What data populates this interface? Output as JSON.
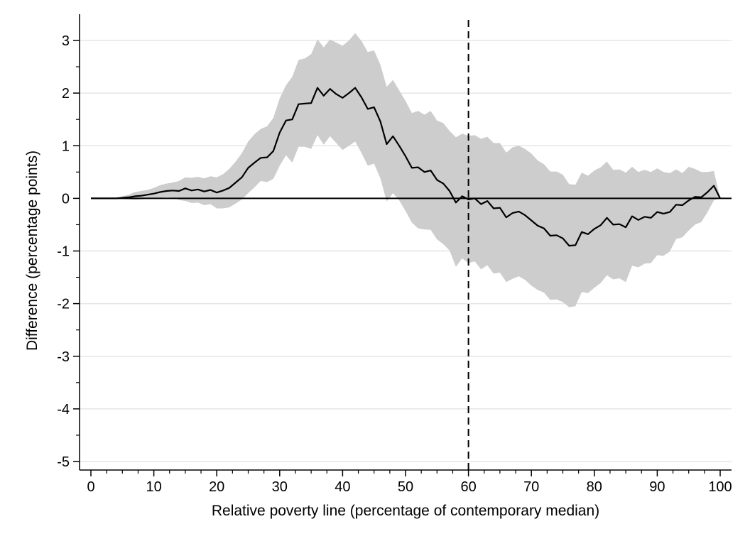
{
  "chart_data": {
    "type": "line",
    "title": "",
    "xlabel": "Relative poverty line (percentage of contemporary median)",
    "ylabel": "Difference (percentage points)",
    "xlim": [
      0,
      100
    ],
    "ylim": [
      -5,
      3
    ],
    "x_ticks": [
      0,
      10,
      20,
      30,
      40,
      50,
      60,
      70,
      80,
      90,
      100
    ],
    "y_ticks": [
      3,
      2,
      1,
      0,
      -1,
      -2,
      -3,
      -4,
      -5
    ],
    "x_minor_step": 2.5,
    "y_minor_step": 0.5,
    "grid": "horizontal",
    "reference_lines": [
      {
        "axis": "y",
        "value": 0,
        "style": "solid"
      },
      {
        "axis": "x",
        "value": 60,
        "style": "dashed"
      }
    ],
    "colors": {
      "line": "#000000",
      "band": "#cdcdcd",
      "grid": "#e6e6e6"
    },
    "x": [
      0,
      1,
      2,
      3,
      4,
      5,
      6,
      7,
      8,
      9,
      10,
      11,
      12,
      13,
      14,
      15,
      16,
      17,
      18,
      19,
      20,
      21,
      22,
      23,
      24,
      25,
      26,
      27,
      28,
      29,
      30,
      31,
      32,
      33,
      34,
      35,
      36,
      37,
      38,
      39,
      40,
      41,
      42,
      43,
      44,
      45,
      46,
      47,
      48,
      49,
      50,
      51,
      52,
      53,
      54,
      55,
      56,
      57,
      58,
      59,
      60,
      61,
      62,
      63,
      64,
      65,
      66,
      67,
      68,
      69,
      70,
      71,
      72,
      73,
      74,
      75,
      76,
      77,
      78,
      79,
      80,
      81,
      82,
      83,
      84,
      85,
      86,
      87,
      88,
      89,
      90,
      91,
      92,
      93,
      94,
      95,
      96,
      97,
      98,
      99,
      100
    ],
    "series": [
      {
        "values": [
          0,
          0,
          0,
          0,
          0,
          0.01,
          0.02,
          0.04,
          0.05,
          0.07,
          0.09,
          0.12,
          0.14,
          0.15,
          0.14,
          0.19,
          0.15,
          0.17,
          0.13,
          0.16,
          0.11,
          0.15,
          0.2,
          0.3,
          0.4,
          0.58,
          0.68,
          0.77,
          0.78,
          0.9,
          1.25,
          1.48,
          1.5,
          1.79,
          1.8,
          1.81,
          2.1,
          1.95,
          2.08,
          1.98,
          1.91,
          2.0,
          2.1,
          1.92,
          1.7,
          1.73,
          1.46,
          1.03,
          1.18,
          1.0,
          0.8,
          0.58,
          0.59,
          0.5,
          0.53,
          0.35,
          0.28,
          0.14,
          -0.08,
          0.04,
          -0.02,
          0.0,
          -0.11,
          -0.05,
          -0.19,
          -0.18,
          -0.36,
          -0.28,
          -0.25,
          -0.32,
          -0.42,
          -0.52,
          -0.57,
          -0.71,
          -0.7,
          -0.76,
          -0.9,
          -0.89,
          -0.64,
          -0.68,
          -0.58,
          -0.51,
          -0.37,
          -0.5,
          -0.49,
          -0.55,
          -0.34,
          -0.41,
          -0.35,
          -0.37,
          -0.26,
          -0.29,
          -0.26,
          -0.12,
          -0.13,
          -0.04,
          0.03,
          0.02,
          0.12,
          0.24,
          0.0
        ],
        "lower": [
          0,
          0,
          0,
          0,
          0,
          -0.01,
          -0.02,
          -0.03,
          -0.02,
          -0.01,
          -0.01,
          0.01,
          0.02,
          0.01,
          -0.03,
          -0.05,
          -0.09,
          -0.08,
          -0.13,
          -0.11,
          -0.19,
          -0.19,
          -0.17,
          -0.1,
          -0.02,
          0.1,
          0.21,
          0.33,
          0.31,
          0.37,
          0.62,
          0.82,
          0.68,
          0.98,
          0.98,
          0.94,
          1.2,
          1.02,
          1.18,
          1.05,
          0.92,
          1.0,
          1.08,
          0.86,
          0.62,
          0.66,
          0.38,
          -0.06,
          0.1,
          -0.04,
          -0.24,
          -0.46,
          -0.57,
          -0.59,
          -0.6,
          -0.78,
          -0.87,
          -0.99,
          -1.3,
          -1.14,
          -1.23,
          -1.2,
          -1.35,
          -1.27,
          -1.43,
          -1.41,
          -1.59,
          -1.53,
          -1.48,
          -1.55,
          -1.66,
          -1.74,
          -1.79,
          -1.93,
          -1.92,
          -1.97,
          -2.07,
          -2.05,
          -1.78,
          -1.8,
          -1.7,
          -1.61,
          -1.46,
          -1.54,
          -1.52,
          -1.59,
          -1.28,
          -1.31,
          -1.24,
          -1.23,
          -1.08,
          -1.09,
          -1.01,
          -0.77,
          -0.74,
          -0.61,
          -0.5,
          -0.45,
          -0.26,
          -0.04,
          0.0
        ],
        "upper": [
          0,
          0,
          0,
          0,
          0,
          0.04,
          0.07,
          0.12,
          0.14,
          0.16,
          0.2,
          0.25,
          0.28,
          0.3,
          0.33,
          0.4,
          0.39,
          0.41,
          0.38,
          0.42,
          0.4,
          0.46,
          0.56,
          0.7,
          0.86,
          1.08,
          1.22,
          1.32,
          1.37,
          1.53,
          1.9,
          2.15,
          2.31,
          2.63,
          2.66,
          2.74,
          3.02,
          2.87,
          3.02,
          2.96,
          2.9,
          3.0,
          3.14,
          2.99,
          2.78,
          2.81,
          2.54,
          2.12,
          2.25,
          2.05,
          1.85,
          1.62,
          1.66,
          1.59,
          1.66,
          1.48,
          1.43,
          1.28,
          1.16,
          1.23,
          1.19,
          1.2,
          1.13,
          1.17,
          1.05,
          1.05,
          0.87,
          0.97,
          1.0,
          0.94,
          0.85,
          0.72,
          0.65,
          0.51,
          0.51,
          0.45,
          0.27,
          0.26,
          0.49,
          0.43,
          0.53,
          0.59,
          0.7,
          0.54,
          0.55,
          0.49,
          0.6,
          0.5,
          0.54,
          0.5,
          0.57,
          0.5,
          0.48,
          0.55,
          0.48,
          0.6,
          0.56,
          0.5,
          0.5,
          0.52,
          0.0
        ]
      }
    ]
  }
}
